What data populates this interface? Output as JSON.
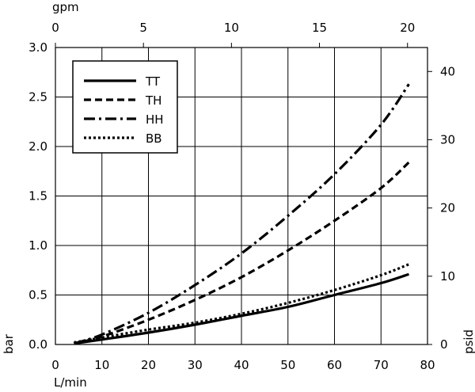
{
  "chart_data": {
    "type": "line",
    "x_unit_label": "L/min",
    "top_unit_label": "gpm",
    "y_left_label": "bar",
    "y_right_label": "psid",
    "xlim": [
      0,
      80
    ],
    "x_ticks": [
      "0",
      "10",
      "20",
      "30",
      "40",
      "50",
      "60",
      "70",
      "80"
    ],
    "top_ticks": [
      "0",
      "5",
      "10",
      "15",
      "20"
    ],
    "ylim": [
      0,
      3.0
    ],
    "y_ticks": [
      "0.0",
      "0.5",
      "1.0",
      "1.5",
      "2.0",
      "2.5",
      "3.0"
    ],
    "y_right_ticks": [
      "0",
      "10",
      "20",
      "30",
      "40"
    ],
    "grid": true,
    "legend_position": "top-left",
    "series": [
      {
        "name": "TT",
        "style": "solid",
        "x": [
          4,
          10,
          20,
          30,
          40,
          50,
          60,
          70,
          76
        ],
        "y": [
          0.01,
          0.05,
          0.12,
          0.2,
          0.29,
          0.38,
          0.5,
          0.62,
          0.71
        ]
      },
      {
        "name": "TH",
        "style": "dashed",
        "x": [
          4,
          10,
          20,
          30,
          40,
          50,
          60,
          70,
          76
        ],
        "y": [
          0.01,
          0.08,
          0.25,
          0.45,
          0.68,
          0.95,
          1.25,
          1.58,
          1.84
        ]
      },
      {
        "name": "HH",
        "style": "dashdot",
        "x": [
          4,
          10,
          20,
          30,
          40,
          50,
          60,
          70,
          76
        ],
        "y": [
          0.01,
          0.1,
          0.32,
          0.6,
          0.92,
          1.3,
          1.72,
          2.22,
          2.63
        ]
      },
      {
        "name": "BB",
        "style": "dotted",
        "x": [
          4,
          10,
          20,
          30,
          40,
          50,
          60,
          70,
          76
        ],
        "y": [
          0.02,
          0.07,
          0.15,
          0.22,
          0.31,
          0.42,
          0.55,
          0.7,
          0.81
        ]
      }
    ]
  }
}
